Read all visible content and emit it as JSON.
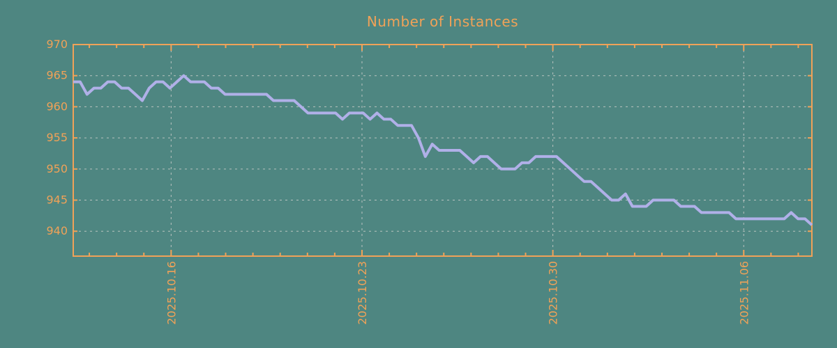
{
  "title": "Number of Instances",
  "colors": {
    "background": "#4E8681",
    "accent": "#F0A258",
    "line": "#B0B0E8",
    "grid": "#B9C3C0"
  },
  "chart_data": {
    "type": "line",
    "title": "Number of Instances",
    "grid": true,
    "legend": false,
    "x_axis": {
      "tick_labels": [
        "2025.10.16",
        "2025.10.23",
        "2025.10.30",
        "2025.11.06"
      ],
      "tick_day_offsets": [
        3.59,
        10.59,
        17.59,
        24.59
      ],
      "total_days": 27.09,
      "first_minor_day_offset": 0.59,
      "minor_tick_every_days": 1
    },
    "y_axis": {
      "ticks": [
        940,
        945,
        950,
        955,
        960,
        965,
        970
      ],
      "ylim": [
        936,
        970
      ]
    },
    "series": [
      {
        "name": "instances",
        "points_per_day": 4,
        "values": [
          964,
          964,
          962,
          963,
          963,
          964,
          964,
          963,
          963,
          962,
          961,
          963,
          964,
          964,
          963,
          964,
          965,
          964,
          964,
          964,
          963,
          963,
          962,
          962,
          962,
          962,
          962,
          962,
          962,
          961,
          961,
          961,
          961,
          960,
          959,
          959,
          959,
          959,
          959,
          958,
          959,
          959,
          959,
          958,
          959,
          958,
          958,
          957,
          957,
          957,
          955,
          952,
          954,
          953,
          953,
          953,
          953,
          952,
          951,
          952,
          952,
          951,
          950,
          950,
          950,
          951,
          951,
          952,
          952,
          952,
          952,
          951,
          950,
          949,
          948,
          948,
          947,
          946,
          945,
          945,
          946,
          944,
          944,
          944,
          945,
          945,
          945,
          945,
          944,
          944,
          944,
          943,
          943,
          943,
          943,
          943,
          942,
          942,
          942,
          942,
          942,
          942,
          942,
          942,
          943,
          942,
          942,
          941
        ]
      }
    ]
  }
}
